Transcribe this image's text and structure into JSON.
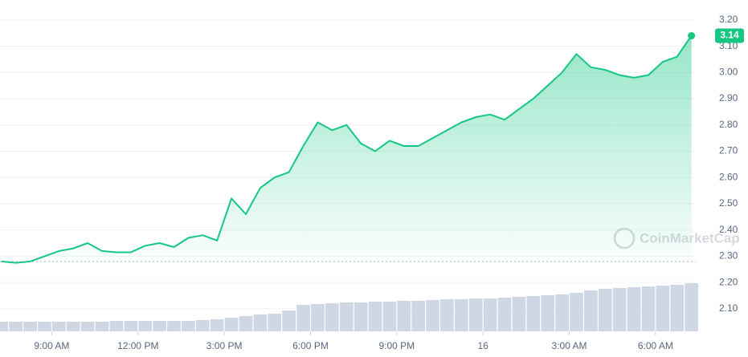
{
  "chart_data": {
    "type": "area",
    "x": [
      7.25,
      7.75,
      8.25,
      8.75,
      9.25,
      9.75,
      10.25,
      10.75,
      11.25,
      11.75,
      12.25,
      12.75,
      13.25,
      13.75,
      14.25,
      14.75,
      15.25,
      15.75,
      16.25,
      16.75,
      17.25,
      17.75,
      18.25,
      18.75,
      19.25,
      19.75,
      20.25,
      20.75,
      21.25,
      21.75,
      22.25,
      22.75,
      23.25,
      23.75,
      24.25,
      24.75,
      25.25,
      25.75,
      26.25,
      26.75,
      27.25,
      27.75,
      28.25,
      28.75,
      29.25,
      29.75,
      30.25,
      30.75,
      31.25
    ],
    "series": [
      {
        "color": "#16c784",
        "values": [
          2.28,
          2.275,
          2.28,
          2.3,
          2.32,
          2.33,
          2.35,
          2.32,
          2.315,
          2.315,
          2.34,
          2.35,
          2.335,
          2.37,
          2.38,
          2.36,
          2.52,
          2.46,
          2.56,
          2.6,
          2.62,
          2.72,
          2.81,
          2.78,
          2.8,
          2.73,
          2.7,
          2.74,
          2.72,
          2.72,
          2.75,
          2.78,
          2.81,
          2.83,
          2.84,
          2.82,
          2.86,
          2.9,
          2.95,
          3.0,
          3.07,
          3.02,
          3.01,
          2.99,
          2.98,
          2.99,
          3.04,
          3.06,
          3.14
        ]
      }
    ],
    "volume": [
      12,
      12,
      12,
      12,
      12,
      12,
      12,
      12,
      13,
      13,
      13,
      13,
      13,
      13,
      14,
      15,
      17,
      19,
      21,
      22,
      26,
      33,
      34,
      35,
      36,
      36,
      37,
      37,
      38,
      38,
      39,
      40,
      40,
      41,
      41,
      42,
      43,
      44,
      45,
      46,
      48,
      51,
      53,
      54,
      55,
      56,
      57,
      58,
      60
    ],
    "volume_color": "#cfd6e4",
    "open_price": 2.28,
    "xlim": [
      7.2,
      31.4
    ],
    "ylim": [
      2.014,
      3.276
    ],
    "xticks": [
      {
        "value": 9,
        "label": "9:00 AM"
      },
      {
        "value": 12,
        "label": "12:00 PM"
      },
      {
        "value": 15,
        "label": "3:00 PM"
      },
      {
        "value": 18,
        "label": "6:00 PM"
      },
      {
        "value": 21,
        "label": "9:00 PM"
      },
      {
        "value": 24,
        "label": "16"
      },
      {
        "value": 27,
        "label": "3:00 AM"
      },
      {
        "value": 30,
        "label": "6:00 AM"
      }
    ],
    "yticks": [
      {
        "value": 2.1,
        "label": "2.10"
      },
      {
        "value": 2.2,
        "label": "2.20"
      },
      {
        "value": 2.3,
        "label": "2.30"
      },
      {
        "value": 2.4,
        "label": "2.40"
      },
      {
        "value": 2.5,
        "label": "2.50"
      },
      {
        "value": 2.6,
        "label": "2.60"
      },
      {
        "value": 2.7,
        "label": "2.70"
      },
      {
        "value": 2.8,
        "label": "2.80"
      },
      {
        "value": 2.9,
        "label": "2.90"
      },
      {
        "value": 3.0,
        "label": "3.00"
      },
      {
        "value": 3.1,
        "label": "3.10"
      },
      {
        "value": 3.2,
        "label": "3.20"
      }
    ],
    "grid": true,
    "watermark": "CoinMarketCap"
  }
}
